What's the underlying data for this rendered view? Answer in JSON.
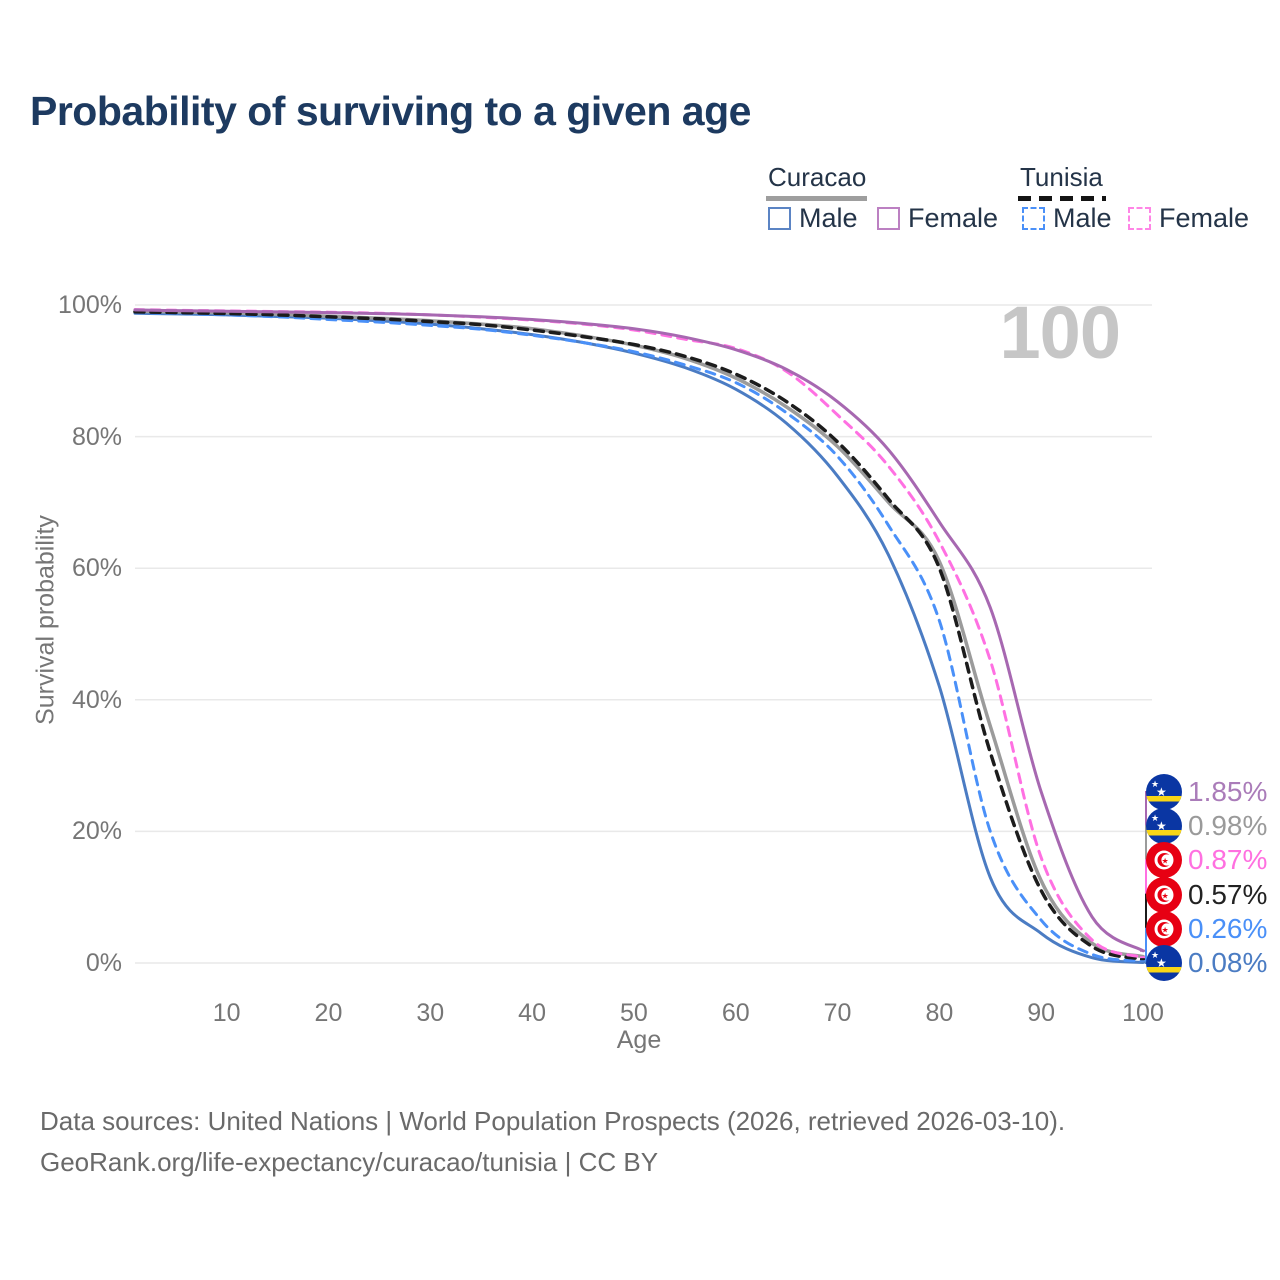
{
  "title": "Probability of surviving to a given age",
  "watermark": "100",
  "legend": {
    "groups": [
      {
        "title": "Curacao",
        "line_style": "solid",
        "line_color": "#9e9e9e",
        "items": [
          {
            "label": "Male",
            "color": "#4b7cc3"
          },
          {
            "label": "Female",
            "color": "#bc80c2"
          }
        ]
      },
      {
        "title": "Tunisia",
        "line_style": "dashed",
        "line_color": "#141414",
        "items": [
          {
            "label": "Male",
            "color": "#4a90f8"
          },
          {
            "label": "Female",
            "color": "#ff85e6"
          }
        ]
      }
    ]
  },
  "chart_data": {
    "type": "line",
    "title": "Probability of surviving to a given age",
    "xlabel": "Age",
    "ylabel": "Survival probability",
    "xlim": [
      1,
      100
    ],
    "ylim": [
      0,
      100
    ],
    "x_ticks": [
      10,
      20,
      30,
      40,
      50,
      60,
      70,
      80,
      90,
      100
    ],
    "y_ticks": [
      0,
      20,
      40,
      60,
      80,
      100
    ],
    "y_tick_labels": [
      "0%",
      "20%",
      "40%",
      "60%",
      "80%",
      "100%"
    ],
    "grid": "horizontal",
    "legend_position": "top-right",
    "ages": [
      1,
      5,
      10,
      15,
      20,
      25,
      30,
      35,
      40,
      45,
      50,
      55,
      60,
      65,
      70,
      75,
      80,
      85,
      90,
      95,
      100
    ],
    "series": [
      {
        "name": "Curacao Male",
        "country": "Curacao",
        "sex": "Male",
        "style": "solid",
        "color": "#4b7cc3",
        "width": 3,
        "values": [
          98.75,
          98.65,
          98.5,
          98.25,
          98.0,
          97.6,
          97.1,
          96.4,
          95.5,
          94.3,
          92.7,
          90.5,
          87.2,
          82.0,
          74.0,
          62.0,
          42.0,
          13.0,
          4.5,
          0.8,
          0.08
        ]
      },
      {
        "name": "Tunisia Male",
        "country": "Tunisia",
        "sex": "Male",
        "style": "dashed",
        "color": "#4a90f8",
        "width": 3,
        "values": [
          98.85,
          98.7,
          98.5,
          98.2,
          97.8,
          97.4,
          96.9,
          96.3,
          95.4,
          94.3,
          92.9,
          90.9,
          88.2,
          83.6,
          77.0,
          66.5,
          52.0,
          20.0,
          6.5,
          1.3,
          0.26
        ]
      },
      {
        "name": "Curacao Total",
        "country": "Curacao",
        "sex": "Total",
        "style": "solid",
        "color": "#9b9b9b",
        "width": 3.5,
        "values": [
          99.05,
          98.95,
          98.8,
          98.6,
          98.3,
          98.0,
          97.6,
          97.1,
          96.4,
          95.3,
          93.9,
          91.9,
          88.9,
          84.5,
          78.5,
          70.0,
          61.0,
          36.0,
          12.5,
          3.0,
          0.98
        ]
      },
      {
        "name": "Tunisia Total",
        "country": "Tunisia",
        "sex": "Total",
        "style": "dashed",
        "color": "#1c1c1c",
        "width": 3.5,
        "values": [
          98.95,
          98.85,
          98.7,
          98.5,
          98.2,
          97.9,
          97.5,
          97.0,
          96.2,
          95.2,
          94.0,
          92.2,
          89.5,
          85.3,
          79.2,
          70.5,
          60.0,
          32.0,
          11.0,
          2.5,
          0.57
        ]
      },
      {
        "name": "Tunisia Female",
        "country": "Tunisia",
        "sex": "Female",
        "style": "dashed",
        "color": "#ff70e2",
        "width": 3,
        "values": [
          99.3,
          99.2,
          99.1,
          99.0,
          98.9,
          98.75,
          98.5,
          98.15,
          97.7,
          97.1,
          96.2,
          94.8,
          93.4,
          89.9,
          83.3,
          75.5,
          64.0,
          46.0,
          16.0,
          3.5,
          0.87
        ]
      },
      {
        "name": "Curacao Female",
        "country": "Curacao",
        "sex": "Female",
        "style": "solid",
        "color": "#a768b1",
        "width": 3,
        "values": [
          99.25,
          99.15,
          99.05,
          98.95,
          98.85,
          98.7,
          98.5,
          98.2,
          97.8,
          97.2,
          96.4,
          95.1,
          93.2,
          90.2,
          85.3,
          78.0,
          67.0,
          54.0,
          26.0,
          7.0,
          1.85
        ]
      }
    ]
  },
  "end_labels": [
    {
      "value": "1.85%",
      "series": "Curacao Female",
      "flag": "curacao",
      "color": "#aa7cb9"
    },
    {
      "value": "0.98%",
      "series": "Curacao Total",
      "flag": "curacao",
      "color": "#9a9a9a"
    },
    {
      "value": "0.87%",
      "series": "Tunisia Female",
      "flag": "tunisia",
      "color": "#ff70e0"
    },
    {
      "value": "0.57%",
      "series": "Tunisia Total",
      "flag": "tunisia",
      "color": "#222222"
    },
    {
      "value": "0.26%",
      "series": "Tunisia Male",
      "flag": "tunisia",
      "color": "#4a90f8"
    },
    {
      "value": "0.08%",
      "series": "Curacao Male",
      "flag": "curacao",
      "color": "#4b7cc3"
    }
  ],
  "flag_colors": {
    "curacao_blue": "#0a36a3",
    "curacao_yellow": "#f9d616",
    "tunisia_red": "#e70013"
  },
  "footer": {
    "line1": "Data sources: United Nations | World Population Prospects (2026, retrieved 2026-03-10).",
    "line2": "GeoRank.org/life-expectancy/curacao/tunisia | CC BY"
  }
}
